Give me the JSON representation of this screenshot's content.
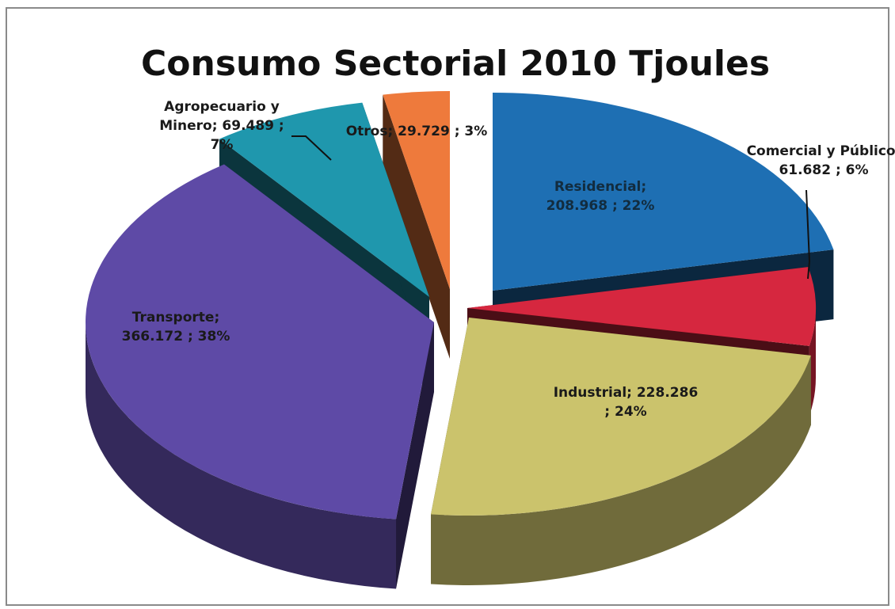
{
  "chart_data": {
    "type": "pie",
    "title": "Consumo Sectorial 2010 Tjoules",
    "slices": [
      {
        "name": "Residencial",
        "value": 208968,
        "percent": 22,
        "color": "#1e6fb3",
        "label_lines": [
          "Residencial;",
          "208.968 ; 22%"
        ]
      },
      {
        "name": "Comercial y Público",
        "value": 61682,
        "percent": 6,
        "color": "#d6273f",
        "label_lines": [
          "Comercial y Público;",
          "61.682 ; 6%"
        ]
      },
      {
        "name": "Industrial",
        "value": 228286,
        "percent": 24,
        "color": "#cbc36c",
        "label_lines": [
          "Industrial;  228.286",
          "; 24%"
        ]
      },
      {
        "name": "Transporte",
        "value": 366172,
        "percent": 38,
        "color": "#5e4aa6",
        "label_lines": [
          "Transporte;",
          "366.172 ; 38%"
        ]
      },
      {
        "name": "Agropecuario y Minero",
        "value": 69489,
        "percent": 7,
        "color": "#1f97ad",
        "label_lines": [
          "Agropecuario y",
          "Minero;  69.489 ;",
          "7%"
        ]
      },
      {
        "name": "Otros",
        "value": 29729,
        "percent": 3,
        "color": "#ee7a3c",
        "label_lines": [
          "Otros;  29.729 ; 3%"
        ]
      }
    ]
  }
}
